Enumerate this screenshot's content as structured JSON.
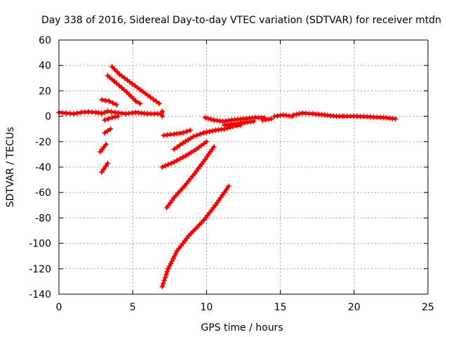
{
  "chart_data": {
    "type": "scatter",
    "title": "Day 338 of 2016, Sidereal Day-to-day VTEC variation (SDTVAR) for receiver mtdn",
    "xlabel": "GPS time / hours",
    "ylabel": "SDTVAR / TECUs",
    "xlim": [
      0,
      25
    ],
    "ylim": [
      -140,
      60
    ],
    "xticks": [
      0,
      5,
      10,
      15,
      20,
      25
    ],
    "yticks": [
      -140,
      -120,
      -100,
      -80,
      -60,
      -40,
      -20,
      0,
      20,
      40,
      60
    ],
    "grid": true,
    "marker": "+",
    "color": "#ff0000",
    "series": [
      {
        "name": "s1",
        "points": [
          [
            0,
            3
          ],
          [
            0.5,
            2.5
          ],
          [
            1,
            2
          ],
          [
            1.5,
            3
          ],
          [
            2,
            3.5
          ],
          [
            2.5,
            3
          ],
          [
            2.9,
            2.5
          ]
        ]
      },
      {
        "name": "s2",
        "points": [
          [
            2.9,
            2
          ],
          [
            3.3,
            4
          ],
          [
            3.8,
            3
          ],
          [
            4.5,
            2
          ],
          [
            5.2,
            3
          ],
          [
            6,
            2
          ],
          [
            6.9,
            2
          ]
        ]
      },
      {
        "name": "s3",
        "points": [
          [
            7,
            4
          ],
          [
            7,
            0
          ]
        ]
      },
      {
        "name": "s4",
        "points": [
          [
            3.6,
            39
          ],
          [
            4.1,
            33
          ],
          [
            4.8,
            27
          ],
          [
            5.5,
            21
          ],
          [
            6.2,
            15
          ],
          [
            6.8,
            10
          ]
        ]
      },
      {
        "name": "s5",
        "points": [
          [
            3.3,
            32
          ],
          [
            3.9,
            26
          ],
          [
            4.6,
            19
          ],
          [
            5.2,
            12
          ],
          [
            5.5,
            10
          ]
        ]
      },
      {
        "name": "s6",
        "points": [
          [
            2.9,
            13
          ],
          [
            3.4,
            12
          ],
          [
            3.9,
            9
          ]
        ]
      },
      {
        "name": "s7",
        "points": [
          [
            3.1,
            -3
          ],
          [
            3.6,
            -1
          ],
          [
            4,
            0
          ]
        ]
      },
      {
        "name": "s8",
        "points": [
          [
            3.1,
            -13
          ],
          [
            3.5,
            -10
          ]
        ]
      },
      {
        "name": "s9",
        "points": [
          [
            2.8,
            -28
          ],
          [
            3.2,
            -22
          ]
        ]
      },
      {
        "name": "s10",
        "points": [
          [
            2.9,
            -44
          ],
          [
            3.3,
            -37
          ]
        ]
      },
      {
        "name": "s11",
        "points": [
          [
            7.1,
            -15
          ],
          [
            7.8,
            -14
          ],
          [
            8.4,
            -13
          ],
          [
            8.9,
            -11
          ]
        ]
      },
      {
        "name": "s12",
        "points": [
          [
            7.8,
            -26
          ],
          [
            8.4,
            -21
          ],
          [
            9.1,
            -16
          ],
          [
            9.8,
            -13
          ],
          [
            10.6,
            -11
          ],
          [
            11.2,
            -10
          ],
          [
            11.8,
            -8
          ],
          [
            12.3,
            -7
          ]
        ]
      },
      {
        "name": "s13",
        "points": [
          [
            7,
            -40
          ],
          [
            7.8,
            -36
          ],
          [
            8.6,
            -31
          ],
          [
            9.3,
            -26
          ],
          [
            10,
            -20
          ]
        ]
      },
      {
        "name": "s14",
        "points": [
          [
            7.3,
            -72
          ],
          [
            7.8,
            -64
          ],
          [
            8.5,
            -55
          ],
          [
            9.2,
            -45
          ],
          [
            9.9,
            -34
          ],
          [
            10.5,
            -24
          ]
        ]
      },
      {
        "name": "s15",
        "points": [
          [
            7,
            -134
          ],
          [
            7.4,
            -120
          ],
          [
            8,
            -106
          ],
          [
            8.8,
            -94
          ],
          [
            9.8,
            -82
          ],
          [
            10.6,
            -70
          ],
          [
            11.2,
            -60
          ],
          [
            11.5,
            -55
          ]
        ]
      },
      {
        "name": "s16",
        "points": [
          [
            9.9,
            -1
          ],
          [
            10.5,
            -3
          ],
          [
            11.1,
            -4
          ],
          [
            11.7,
            -3
          ],
          [
            12.5,
            -2
          ],
          [
            13.3,
            -1
          ],
          [
            13.9,
            -1
          ]
        ]
      },
      {
        "name": "s17",
        "points": [
          [
            11.2,
            -7
          ],
          [
            11.9,
            -6
          ],
          [
            12.6,
            -5
          ],
          [
            13.2,
            -4
          ]
        ]
      },
      {
        "name": "s18",
        "points": [
          [
            13.8,
            -3
          ],
          [
            14.4,
            -2
          ]
        ]
      },
      {
        "name": "s19",
        "points": [
          [
            14.6,
            0
          ],
          [
            15.2,
            1
          ],
          [
            15.8,
            0
          ]
        ]
      },
      {
        "name": "s20",
        "points": [
          [
            15.9,
            1
          ],
          [
            16.5,
            2.5
          ],
          [
            17.2,
            2
          ],
          [
            18,
            1
          ],
          [
            18.8,
            0
          ],
          [
            19.2,
            0
          ]
        ]
      },
      {
        "name": "s21",
        "points": [
          [
            19.3,
            0
          ],
          [
            20.2,
            0
          ],
          [
            21.1,
            -0.5
          ],
          [
            22,
            -1
          ],
          [
            22.8,
            -2
          ]
        ]
      }
    ]
  }
}
